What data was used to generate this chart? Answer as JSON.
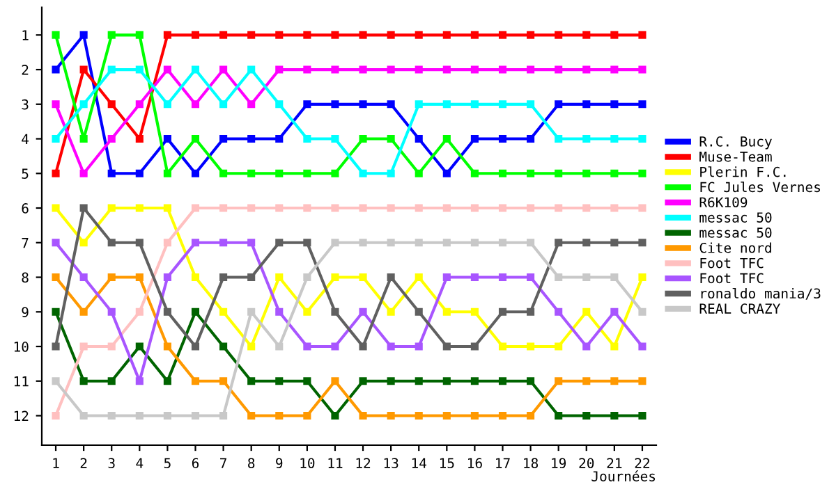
{
  "chart_data": {
    "type": "line",
    "xlabel": "Journées",
    "x": [
      1,
      2,
      3,
      4,
      5,
      6,
      7,
      8,
      9,
      10,
      11,
      12,
      13,
      14,
      15,
      16,
      17,
      18,
      19,
      20,
      21,
      22
    ],
    "xlim": [
      0.5,
      22.5
    ],
    "xticks": [
      1,
      2,
      3,
      4,
      5,
      6,
      7,
      8,
      9,
      10,
      11,
      12,
      13,
      14,
      15,
      16,
      17,
      18,
      19,
      20,
      21,
      22
    ],
    "ylim": [
      12.85,
      0.2
    ],
    "yticks": [
      1,
      2,
      3,
      4,
      5,
      6,
      7,
      8,
      9,
      10,
      11,
      12
    ],
    "grid": false,
    "legend": "right",
    "marker": "square",
    "line_style": "solid",
    "series": [
      {
        "name": "R.C. Bucy",
        "color": "#0000ff",
        "values": [
          2,
          1,
          5,
          5,
          4,
          5,
          4,
          4,
          4,
          3,
          3,
          3,
          3,
          4,
          5,
          4,
          4,
          4,
          3,
          3,
          3,
          3
        ]
      },
      {
        "name": "Muse-Team",
        "color": "#ff0000",
        "values": [
          5,
          2,
          3,
          4,
          1,
          1,
          1,
          1,
          1,
          1,
          1,
          1,
          1,
          1,
          1,
          1,
          1,
          1,
          1,
          1,
          1,
          1
        ]
      },
      {
        "name": "Plerin F.C.",
        "color": "#ffff00",
        "values": [
          6,
          7,
          6,
          6,
          6,
          8,
          9,
          10,
          8,
          9,
          8,
          8,
          9,
          8,
          9,
          9,
          10,
          10,
          10,
          9,
          10,
          8
        ]
      },
      {
        "name": "FC Jules Vernes",
        "color": "#00ff00",
        "values": [
          1,
          4,
          1,
          1,
          5,
          4,
          5,
          5,
          5,
          5,
          5,
          4,
          4,
          5,
          4,
          5,
          5,
          5,
          5,
          5,
          5,
          5
        ]
      },
      {
        "name": "R6K109",
        "color": "#ff00ff",
        "values": [
          3,
          5,
          4,
          3,
          2,
          3,
          2,
          3,
          2,
          2,
          2,
          2,
          2,
          2,
          2,
          2,
          2,
          2,
          2,
          2,
          2,
          2
        ]
      },
      {
        "name": "messac 50",
        "color": "#00ffff",
        "values": [
          4,
          3,
          2,
          2,
          3,
          2,
          3,
          2,
          3,
          4,
          4,
          5,
          5,
          3,
          3,
          3,
          3,
          3,
          4,
          4,
          4,
          4
        ]
      },
      {
        "name": "messac 50",
        "color": "#006400",
        "values": [
          9,
          11,
          11,
          10,
          11,
          9,
          10,
          11,
          11,
          11,
          12,
          11,
          11,
          11,
          11,
          11,
          11,
          11,
          12,
          12,
          12,
          12
        ]
      },
      {
        "name": "Cite nord",
        "color": "#ff9900",
        "values": [
          8,
          9,
          8,
          8,
          10,
          11,
          11,
          12,
          12,
          12,
          11,
          12,
          12,
          12,
          12,
          12,
          12,
          12,
          11,
          11,
          11,
          11
        ]
      },
      {
        "name": "Foot TFC",
        "color": "#ffc0c0",
        "values": [
          12,
          10,
          10,
          9,
          7,
          6,
          6,
          6,
          6,
          6,
          6,
          6,
          6,
          6,
          6,
          6,
          6,
          6,
          6,
          6,
          6,
          6
        ]
      },
      {
        "name": "Foot TFC",
        "color": "#a855ff",
        "values": [
          7,
          8,
          9,
          11,
          8,
          7,
          7,
          7,
          9,
          10,
          10,
          9,
          10,
          10,
          8,
          8,
          8,
          8,
          9,
          10,
          9,
          10
        ]
      },
      {
        "name": "ronaldo mania/3",
        "color": "#606060",
        "values": [
          10,
          6,
          7,
          7,
          9,
          10,
          8,
          8,
          7,
          7,
          9,
          10,
          8,
          9,
          10,
          10,
          9,
          9,
          7,
          7,
          7,
          7
        ]
      },
      {
        "name": "REAL CRAZY",
        "color": "#c8c8c8",
        "values": [
          11,
          12,
          12,
          12,
          12,
          12,
          12,
          9,
          10,
          8,
          7,
          7,
          7,
          7,
          7,
          7,
          7,
          7,
          8,
          8,
          8,
          9
        ]
      }
    ]
  }
}
